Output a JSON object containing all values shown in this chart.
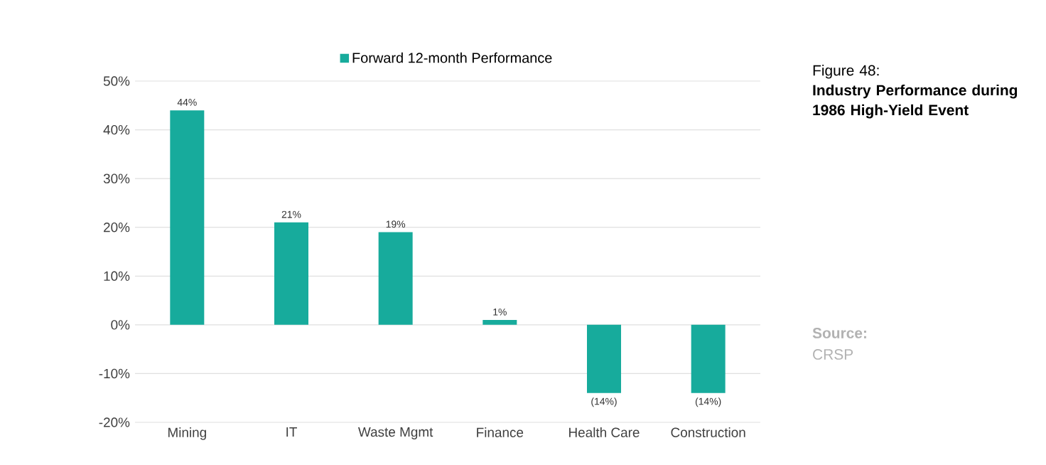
{
  "chart_data": {
    "type": "bar",
    "title": "Figure 48:",
    "subtitle": "Industry Performance during 1986 High-Yield Event",
    "annotations": [
      "Source:",
      "CRSP"
    ],
    "categories": [
      "Mining",
      "IT",
      "Waste Mgmt",
      "Finance",
      "Health Care",
      "Construction"
    ],
    "series": [
      {
        "name": "Forward 12-month Performance",
        "color": "#17ab9c",
        "values": [
          44,
          21,
          19,
          1,
          -14,
          -14
        ],
        "value_labels": [
          "44%",
          "21%",
          "19%",
          "1%",
          "(14%)",
          "(14%)"
        ]
      }
    ],
    "ylim": [
      -20,
      50
    ],
    "yticks": [
      {
        "value": -20,
        "label": "-20%"
      },
      {
        "value": -10,
        "label": "-10%"
      },
      {
        "value": 0,
        "label": "0%"
      },
      {
        "value": 10,
        "label": "10%"
      },
      {
        "value": 20,
        "label": "20%"
      },
      {
        "value": 30,
        "label": "30%"
      },
      {
        "value": 40,
        "label": "40%"
      },
      {
        "value": 50,
        "label": "50%"
      }
    ],
    "grid": "y",
    "legend": "top"
  }
}
